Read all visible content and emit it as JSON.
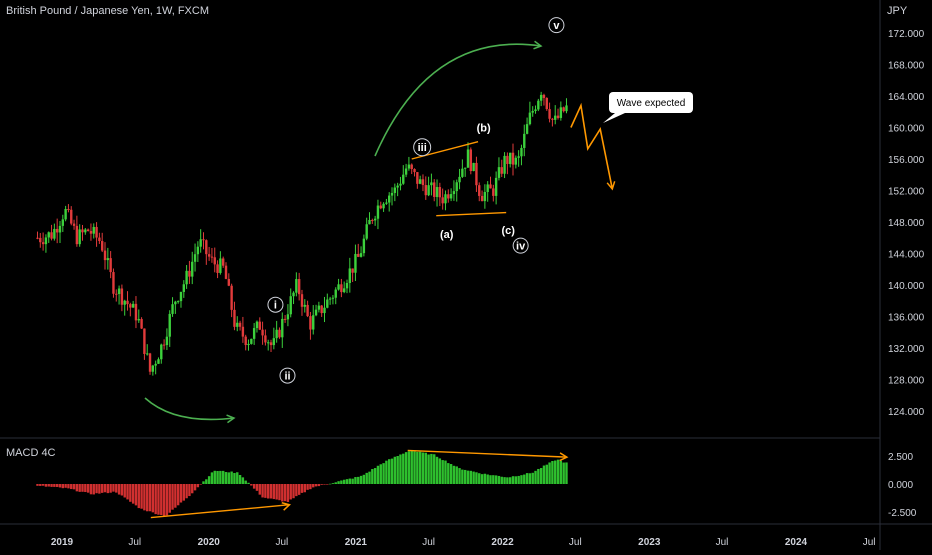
{
  "chart_data": [
    {
      "type": "candlestick",
      "title": "British Pound / Japanese Yen, 1W, FXCM",
      "y_unit": "JPY",
      "ylim": [
        119.0,
        175.5
      ],
      "y_ticks": [
        "172.000",
        "168.000",
        "164.000",
        "160.000",
        "156.000",
        "152.000",
        "148.000",
        "144.000",
        "140.000",
        "136.000",
        "132.000",
        "128.000",
        "124.000"
      ],
      "x_ticks": [
        "2019",
        "Jul",
        "2020",
        "Jul",
        "2021",
        "Jul",
        "2022",
        "Jul",
        "2023",
        "Jul",
        "2024",
        "Jul"
      ],
      "grid": false,
      "price_path": [
        [
          "2018-11",
          146.0
        ],
        [
          "2018-12",
          146.5
        ],
        [
          "2019-01",
          149.5
        ],
        [
          "2019-02",
          146.0
        ],
        [
          "2019-03",
          147.0
        ],
        [
          "2019-04",
          145.5
        ],
        [
          "2019-05",
          140.0
        ],
        [
          "2019-06",
          138.0
        ],
        [
          "2019-07",
          136.0
        ],
        [
          "2019-08",
          129.0
        ],
        [
          "2019-09",
          132.5
        ],
        [
          "2019-10",
          138.0
        ],
        [
          "2019-11",
          141.0
        ],
        [
          "2019-12",
          145.5
        ],
        [
          "2020-01",
          143.0
        ],
        [
          "2020-02",
          142.0
        ],
        [
          "2020-03",
          134.5
        ],
        [
          "2020-04",
          133.0
        ],
        [
          "2020-05",
          135.0
        ],
        [
          "2020-06",
          132.0
        ],
        [
          "2020-07",
          136.0
        ],
        [
          "2020-08",
          140.0
        ],
        [
          "2020-09",
          135.0
        ],
        [
          "2020-10",
          137.0
        ],
        [
          "2020-11",
          139.0
        ],
        [
          "2020-12",
          141.0
        ],
        [
          "2021-01",
          143.5
        ],
        [
          "2021-02",
          148.5
        ],
        [
          "2021-03",
          151.0
        ],
        [
          "2021-04",
          152.0
        ],
        [
          "2021-05",
          155.0
        ],
        [
          "2021-06",
          153.0
        ],
        [
          "2021-07",
          152.0
        ],
        [
          "2021-08",
          151.0
        ],
        [
          "2021-09",
          153.5
        ],
        [
          "2021-10",
          156.5
        ],
        [
          "2021-11",
          151.5
        ],
        [
          "2021-12",
          152.0
        ],
        [
          "2022-01",
          156.0
        ],
        [
          "2022-02",
          155.5
        ],
        [
          "2022-03",
          161.0
        ],
        [
          "2022-04",
          165.0
        ],
        [
          "2022-05",
          160.5
        ],
        [
          "2022-06",
          162.5
        ]
      ],
      "wave_labels": [
        {
          "label": "i",
          "date": "2020-06",
          "price": 137.5
        },
        {
          "label": "ii",
          "date": "2020-07",
          "price": 128.5
        },
        {
          "label": "iii",
          "date": "2021-06",
          "price": 157.5
        },
        {
          "label": "(a)",
          "date": "2021-08",
          "price": 146.5
        },
        {
          "label": "(b)",
          "date": "2021-11",
          "price": 160.0
        },
        {
          "label": "(c)",
          "date": "2022-01",
          "price": 147.0
        },
        {
          "label": "iv",
          "date": "2022-02",
          "price": 145.0
        },
        {
          "label": "v",
          "date": "2022-05",
          "price": 173.0
        }
      ],
      "projection": [
        [
          "2022-06-20",
          160.0
        ],
        [
          "2022-07-15",
          162.8
        ],
        [
          "2022-08-01",
          157.3
        ],
        [
          "2022-09-01",
          159.8
        ],
        [
          "2022-10-01",
          152.2
        ]
      ],
      "annotations": [
        {
          "text": "Wave expected"
        }
      ],
      "colors": {
        "up": "#26a69a",
        "down": "#ef5350",
        "impulse": "#4caf50",
        "projection": "#ff9800"
      }
    },
    {
      "type": "histogram",
      "title": "MACD 4C",
      "ylim": [
        -3.3,
        3.6
      ],
      "y_ticks": [
        "2.500",
        "0.000",
        "-2.500"
      ],
      "macd_path": [
        [
          "2018-11",
          -0.2
        ],
        [
          "2019-01",
          -0.4
        ],
        [
          "2019-03",
          -0.9
        ],
        [
          "2019-05",
          -0.7
        ],
        [
          "2019-07",
          -2.2
        ],
        [
          "2019-09",
          -2.9
        ],
        [
          "2019-11",
          -1.0
        ],
        [
          "2020-01",
          1.2
        ],
        [
          "2020-03",
          1.0
        ],
        [
          "2020-05",
          -1.2
        ],
        [
          "2020-07",
          -1.6
        ],
        [
          "2020-09",
          -0.3
        ],
        [
          "2020-11",
          0.2
        ],
        [
          "2021-01",
          0.7
        ],
        [
          "2021-03",
          2.0
        ],
        [
          "2021-05",
          3.0
        ],
        [
          "2021-07",
          2.6
        ],
        [
          "2021-09",
          1.4
        ],
        [
          "2021-11",
          0.9
        ],
        [
          "2022-01",
          0.6
        ],
        [
          "2022-03",
          1.0
        ],
        [
          "2022-05",
          2.2
        ],
        [
          "2022-06",
          1.8
        ]
      ],
      "colors": {
        "positive": "#4caf50",
        "negative": "#ef5350",
        "divergence": "#ff9800"
      }
    }
  ],
  "labels": {
    "title": "British Pound / Japanese Yen, 1W, FXCM",
    "unit": "JPY",
    "macd": "MACD 4C"
  }
}
